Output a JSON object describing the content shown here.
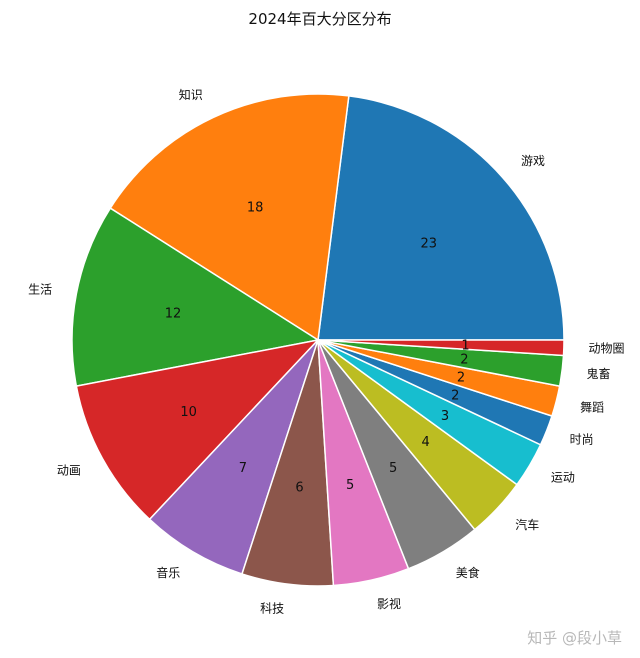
{
  "chart_data": {
    "type": "pie",
    "title": "2024年百大分区分布",
    "categories": [
      "游戏",
      "知识",
      "生活",
      "动画",
      "音乐",
      "科技",
      "影视",
      "美食",
      "汽车",
      "运动",
      "时尚",
      "舞蹈",
      "鬼畜",
      "动物圈"
    ],
    "values": [
      23,
      18,
      12,
      10,
      7,
      6,
      5,
      5,
      4,
      3,
      2,
      2,
      2,
      1
    ],
    "colors": [
      "#1f77b4",
      "#ff7f0e",
      "#2ca02c",
      "#d62728",
      "#9467bd",
      "#8c564b",
      "#e377c2",
      "#7f7f7f",
      "#bcbd22",
      "#17becf",
      "#1f77b4",
      "#ff7f0e",
      "#2ca02c",
      "#d62728"
    ],
    "start_angle": "counterclockwise from 3 o'clock"
  },
  "watermark": "知乎 @段小草"
}
